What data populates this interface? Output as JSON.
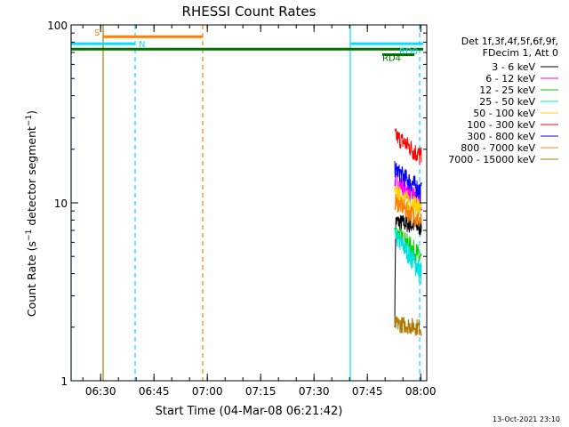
{
  "chart_data": {
    "type": "line",
    "title": "RHESSI Count Rates",
    "xlabel": "Start Time (04-Mar-08 06:21:42)",
    "ylabel_prefix": "Count Rate (s",
    "ylabel_exp": "−1",
    "ylabel_suffix": " detector segment",
    "ylabel_exp2": "−1",
    "ylabel_close": ")",
    "yscale": "log",
    "xlim_minutes": [
      0,
      100
    ],
    "ylim": [
      1,
      100
    ],
    "x_ticks": [
      {
        "label": "06:30",
        "minutes": 8.3
      },
      {
        "label": "06:45",
        "minutes": 23.3
      },
      {
        "label": "07:00",
        "minutes": 38.3
      },
      {
        "label": "07:15",
        "minutes": 53.3
      },
      {
        "label": "07:30",
        "minutes": 68.3
      },
      {
        "label": "07:45",
        "minutes": 83.3
      },
      {
        "label": "08:00",
        "minutes": 98.3
      }
    ],
    "y_ticks": [
      {
        "label": "1",
        "value": 1
      },
      {
        "label": "10",
        "value": 10
      },
      {
        "label": "100",
        "value": 100
      }
    ],
    "legend": {
      "header1": "Det 1f,3f,4f,5f,6f,9f,",
      "header2": "FDecim 1, Att 0",
      "position": "right"
    },
    "series": [
      {
        "name": "3 - 6 keV",
        "color": "#000000",
        "start": 7.9,
        "end": 7.3
      },
      {
        "name": "6 - 12 keV",
        "color": "#ff00ff",
        "start": 13.5,
        "end": 10.0
      },
      {
        "name": "12 - 25 keV",
        "color": "#00d000",
        "start": 7.0,
        "end": 4.8
      },
      {
        "name": "25 - 50 keV",
        "color": "#00e0e0",
        "start": 6.5,
        "end": 4.0
      },
      {
        "name": "50 - 100 keV",
        "color": "#ffd000",
        "start": 11.5,
        "end": 9.3
      },
      {
        "name": "100 - 300 keV",
        "color": "#ff0000",
        "start": 24.0,
        "end": 18.0
      },
      {
        "name": "300 - 800 keV",
        "color": "#0000ff",
        "start": 15.5,
        "end": 11.5
      },
      {
        "name": "800 - 7000 keV",
        "color": "#ff8000",
        "start": 10.2,
        "end": 7.8
      },
      {
        "name": "7000 - 15000 keV",
        "color": "#b07800",
        "start": 2.1,
        "end": 2.0
      }
    ],
    "data_window_minutes": [
      91.0,
      98.5
    ],
    "state_bars": [
      {
        "label": "S",
        "color": "#ff8000",
        "start": 9.0,
        "end": 37.0,
        "level": 85
      },
      {
        "label": "N",
        "color": "#00e0ff",
        "start": 0.0,
        "end": 18.0,
        "level": 76
      },
      {
        "label": "",
        "color": "#007000",
        "start": 0.0,
        "end": 99.0,
        "level": 69
      },
      {
        "label": "RD0",
        "color": "#00e0ff",
        "start": 78.5,
        "end": 99.0,
        "level": 76
      },
      {
        "label": "RD4",
        "color": "#007000",
        "start": 87.5,
        "end": 96.5,
        "level": 62
      }
    ],
    "vertical_lines": [
      {
        "minutes": 0.0,
        "color": "#00e0ff",
        "style": "solid"
      },
      {
        "minutes": 9.0,
        "color": "#b07800",
        "style": "solid"
      },
      {
        "minutes": 18.0,
        "color": "#00e0ff",
        "style": "dashed"
      },
      {
        "minutes": 37.0,
        "color": "#ff8000",
        "style": "dashed"
      },
      {
        "minutes": 78.5,
        "color": "#00e0ff",
        "style": "solid"
      },
      {
        "minutes": 98.0,
        "color": "#00e0ff",
        "style": "dashed"
      }
    ],
    "timestamp": "13-Oct-2021 23:10",
    "grid": false
  }
}
